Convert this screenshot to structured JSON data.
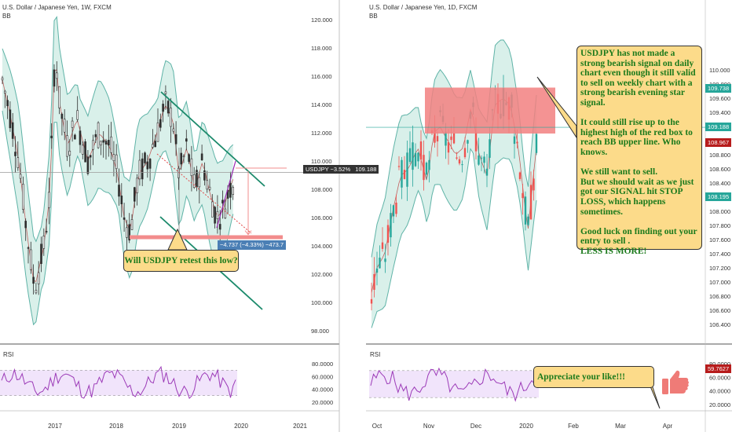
{
  "left_panel": {
    "title": "U.S. Dollar / Japanese Yen, 1W, FXCM",
    "indicator_label": "BB",
    "rsi_label": "RSI",
    "price_ticks": [
      "120.000",
      "118.000",
      "116.000",
      "114.000",
      "112.000",
      "110.000",
      "108.000",
      "106.000",
      "104.000",
      "102.000",
      "100.000",
      "98.000"
    ],
    "rsi_ticks": [
      "80.0000",
      "60.0000",
      "40.0000",
      "20.0000"
    ],
    "x_ticks": [
      "2017",
      "2018",
      "2019",
      "2020",
      "2021"
    ],
    "symbol_tag": "USDJPY −3.52%",
    "current_price": "109.188",
    "measure_label": "−4.737 (−4.33%) −473.7",
    "callout_text": "Will USDJPY retest this low?"
  },
  "right_panel": {
    "title": "U.S. Dollar / Japanese Yen, 1D, FXCM",
    "indicator_label": "BB",
    "rsi_label": "RSI",
    "price_ticks": [
      "110.000",
      "109.800",
      "109.600",
      "109.400",
      "109.200",
      "109.000",
      "108.800",
      "108.600",
      "108.400",
      "108.200",
      "108.000",
      "107.800",
      "107.600",
      "107.400",
      "107.200",
      "107.000",
      "106.800",
      "106.600",
      "106.400"
    ],
    "rsi_ticks": [
      "80.0000",
      "60.0000",
      "40.0000",
      "20.0000"
    ],
    "x_ticks": [
      "Oct",
      "Nov",
      "Dec",
      "2020",
      "Feb",
      "Mar",
      "Apr"
    ],
    "price_badges": [
      {
        "value": "109.738",
        "color": "#26a69a"
      },
      {
        "value": "109.188",
        "color": "#26a69a"
      },
      {
        "value": "108.967",
        "color": "#b71c1c"
      },
      {
        "value": "108.195",
        "color": "#26a69a"
      }
    ],
    "rsi_badge": "59.7627",
    "note_paragraphs": [
      "USDJPY has not made a strong bearish signal on daily chart even though it still valid to sell on weekly chart with a strong bearish evening star signal.",
      "It could still rise up to the highest high of the red box to reach BB upper line. Who knows.",
      "We still want to sell.\nBut we should wait as we just got our SIGNAL hit STOP LOSS, which happens sometimes.",
      "Good luck on finding out your entry to sell .\nLESS IS MORE!"
    ],
    "like_text": "Appreciate your like!!!"
  },
  "colors": {
    "up": "#26a69a",
    "down": "#ef5350",
    "bb_line": "#5fb3a7",
    "bb_fill": "#d9f0ea",
    "rsi_line": "#9c3bb8",
    "rsi_band": "#f1e4fb",
    "trendline": "#1b8a6b",
    "support": "#f28c8c",
    "callout_bg": "#fcdb8a",
    "callout_text": "#1c7a1c"
  },
  "chart_data": [
    {
      "type": "candlestick",
      "title": "U.S. Dollar / Japanese Yen, 1W, FXCM",
      "ylim": [
        97,
        121
      ],
      "yticks": [
        98,
        100,
        102,
        104,
        106,
        108,
        110,
        112,
        114,
        116,
        118,
        120
      ],
      "xlabels": [
        "2017",
        "2018",
        "2019",
        "2020",
        "2021"
      ],
      "indicators": [
        "BB",
        "RSI"
      ],
      "last_price": 109.188,
      "change_pct": -3.52,
      "support_level": 104.7,
      "rsi_bands": [
        30,
        70
      ]
    },
    {
      "type": "candlestick",
      "title": "U.S. Dollar / Japanese Yen, 1D, FXCM",
      "ylim": [
        106.3,
        110.1
      ],
      "yticks": [
        106.4,
        106.6,
        106.8,
        107.0,
        107.2,
        107.4,
        107.6,
        107.8,
        108.0,
        108.2,
        108.4,
        108.6,
        108.8,
        109.0,
        109.2,
        109.4,
        109.6,
        109.8,
        110.0
      ],
      "xlabels": [
        "Oct",
        "Nov",
        "Dec",
        "2020",
        "Feb",
        "Mar",
        "Apr"
      ],
      "indicators": [
        "BB",
        "RSI"
      ],
      "marked_prices": [
        109.738,
        109.188,
        108.967,
        108.195
      ],
      "resistance_box": [
        109.1,
        109.75
      ],
      "rsi_last": 59.7627,
      "rsi_bands": [
        30,
        70
      ]
    }
  ]
}
